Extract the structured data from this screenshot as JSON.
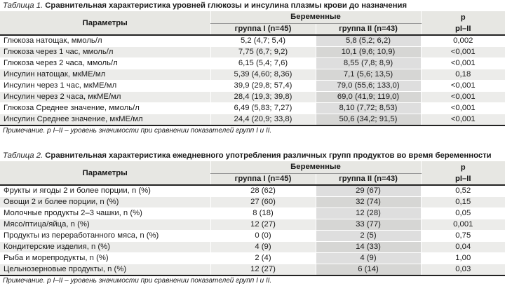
{
  "table1": {
    "caption_num": "Таблица 1.",
    "caption_title": "Сравнительная характеристика уровней глюкозы и инсулина плазмы крови до назначения",
    "header": {
      "params": "Параметры",
      "pregnant": "Беременные",
      "p": "p",
      "group1": "группа I (n=45)",
      "group2": "группа II (n=43)",
      "p_sub": "pI–II"
    },
    "rows": [
      {
        "param": "Глюкоза натощак, ммоль/л",
        "g1": "5,2 (4,7; 5,4)",
        "g2": "5,8 (5,2; 6,2)",
        "p": "0,002"
      },
      {
        "param": "Глюкоза через 1 час, ммоль/л",
        "g1": "7,75 (6,7; 9,2)",
        "g2": "10,1 (9,6; 10,9)",
        "p": "<0,001"
      },
      {
        "param": "Глюкоза через 2 часа, ммоль/л",
        "g1": "6,15 (5,4; 7,6)",
        "g2": "8,55 (7,8; 8,9)",
        "p": "<0,001"
      },
      {
        "param": "Инсулин натощак, мкМЕ/мл",
        "g1": "5,39 (4,60; 8,36)",
        "g2": "7,1 (5,6; 13,5)",
        "p": "0,18"
      },
      {
        "param": "Инсулин через 1 час, мкМЕ/мл",
        "g1": "39,9 (29,8; 57,4)",
        "g2": "79,0 (55,6; 133,0)",
        "p": "<0,001"
      },
      {
        "param": "Инсулин через 2 часа, мкМЕ/мл",
        "g1": "28,4 (19,3; 39,8)",
        "g2": "69,0 (41,9; 119,0)",
        "p": "<0,001"
      },
      {
        "param": "Глюкоза Среднее значение, ммоль/л",
        "g1": "6,49 (5,83; 7,27)",
        "g2": "8,10 (7,72; 8,53)",
        "p": "<0,001"
      },
      {
        "param": "Инсулин Среднее значение, мкМЕ/мл",
        "g1": "24,4 (20,9; 33,8)",
        "g2": "50,6 (34,2; 91,5)",
        "p": "<0,001"
      }
    ],
    "note": "Примечание. p I–II – уровень значимости при сравнении показателей групп I и II."
  },
  "table2": {
    "caption_num": "Таблица 2.",
    "caption_title": "Сравнительная характеристика ежедневного употребления различных групп продуктов во время беременности",
    "header": {
      "params": "Параметры",
      "pregnant": "Беременные",
      "p": "p",
      "group1": "группа I (n=45)",
      "group2": "группа II (n=43)",
      "p_sub": "pI–II"
    },
    "rows": [
      {
        "param": "Фрукты и ягоды 2 и более порции, n (%)",
        "g1": "28 (62)",
        "g2": "29 (67)",
        "p": "0,52"
      },
      {
        "param": "Овощи 2 и более порции, n (%)",
        "g1": "27 (60)",
        "g2": "32 (74)",
        "p": "0,15"
      },
      {
        "param": "Молочные продукты 2–3 чашки, n (%)",
        "g1": "8 (18)",
        "g2": "12 (28)",
        "p": "0,05"
      },
      {
        "param": "Мясо/птица/яйца, n (%)",
        "g1": "12 (27)",
        "g2": "33 (77)",
        "p": "0,001"
      },
      {
        "param": "Продукты из переработанного мяса, n (%)",
        "g1": "0 (0)",
        "g2": "2 (5)",
        "p": "0,75"
      },
      {
        "param": "Кондитерские изделия, n (%)",
        "g1": "4 (9)",
        "g2": "14 (33)",
        "p": "0,04"
      },
      {
        "param": "Рыба и морепродукты, n (%)",
        "g1": "2 (4)",
        "g2": "4 (9)",
        "p": "1,00"
      },
      {
        "param": "Цельнозерновые продукты, n (%)",
        "g1": "12 (27)",
        "g2": "6 (14)",
        "p": "0,03"
      }
    ],
    "note": "Примечание. p I–II – уровень значимости при сравнении показателей групп I и II."
  }
}
